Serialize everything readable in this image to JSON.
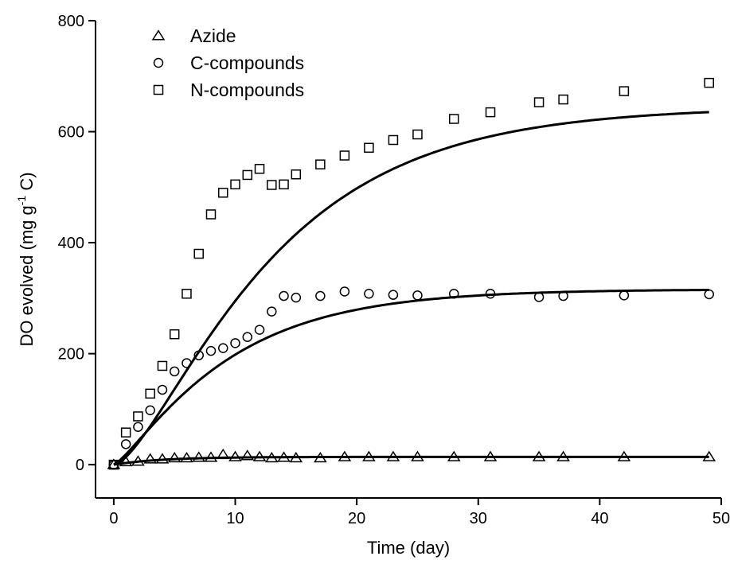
{
  "chart_data": {
    "type": "scatter",
    "xlabel": "Time (day)",
    "ylabel": {
      "main": "DO evolved (mg g",
      "sup": "-1",
      "tail": " C)"
    },
    "xlim": [
      -1.5,
      50
    ],
    "ylim": [
      -60,
      800
    ],
    "xticks": [
      0,
      10,
      20,
      30,
      40,
      50
    ],
    "yticks": [
      0,
      200,
      400,
      600,
      800
    ],
    "legend_position": "top-left",
    "series": [
      {
        "name": "Azide",
        "marker": "triangle",
        "x": [
          0,
          1,
          2,
          3,
          4,
          5,
          6,
          7,
          8,
          9,
          10,
          11,
          12,
          13,
          14,
          15,
          17,
          19,
          21,
          23,
          25,
          28,
          31,
          35,
          37,
          42,
          49
        ],
        "y": [
          0,
          5,
          6,
          10,
          10,
          12,
          12,
          13,
          13,
          18,
          14,
          16,
          14,
          12,
          13,
          12,
          12,
          14,
          14,
          14,
          14,
          14,
          14,
          14,
          14,
          14,
          14
        ],
        "fit": {
          "a": 14,
          "k": 0.25,
          "n": 1
        }
      },
      {
        "name": "C-compounds",
        "marker": "circle",
        "x": [
          0,
          1,
          2,
          3,
          4,
          5,
          6,
          7,
          8,
          9,
          10,
          11,
          12,
          13,
          14,
          15,
          17,
          19,
          21,
          23,
          25,
          28,
          31,
          35,
          37,
          42,
          49
        ],
        "y": [
          0,
          37,
          68,
          98,
          135,
          168,
          183,
          197,
          205,
          210,
          219,
          230,
          243,
          276,
          304,
          301,
          304,
          312,
          308,
          306,
          305,
          308,
          308,
          302,
          304,
          305,
          307
        ],
        "fit": {
          "a": 316,
          "k": 0.12,
          "n": 1.3
        }
      },
      {
        "name": "N-compounds",
        "marker": "square",
        "x": [
          0,
          1,
          2,
          3,
          4,
          5,
          6,
          7,
          8,
          9,
          10,
          11,
          12,
          13,
          14,
          15,
          17,
          19,
          21,
          23,
          25,
          28,
          31,
          35,
          37,
          42,
          49
        ],
        "y": [
          0,
          58,
          87,
          128,
          178,
          235,
          308,
          380,
          451,
          490,
          505,
          522,
          533,
          504,
          505,
          523,
          541,
          557,
          571,
          585,
          595,
          623,
          635,
          653,
          658,
          673,
          688
        ],
        "fit": {
          "a": 645,
          "k": 0.095,
          "n": 1.6
        }
      }
    ]
  }
}
